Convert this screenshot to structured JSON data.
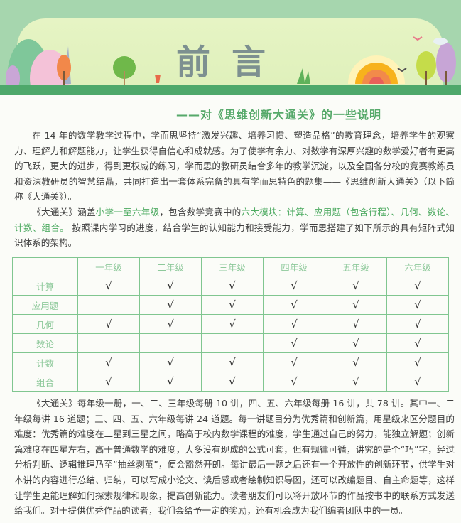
{
  "header": {
    "title": "前言",
    "subtitle": "——对《思维创新大通关》的一些说明"
  },
  "colors": {
    "accent": "#56a96a",
    "banner": "#a6d6ae",
    "table_border": "#80c690"
  },
  "para1": "在 14 年的数学教学过程中，学而思坚持“激发兴趣、培养习惯、塑造品格”的教育理念，培养学生的观察力、理解力和解题能力，让学生获得自信心和成就感。为了使学有余力、对数学有深厚兴趣的数学爱好者有更高的飞跃，更大的进步，得到更权威的练习，学而思的教研员结合多年的教学沉淀，以及全国各分校的竞赛教练员和资深教研员的智慧结晶，共同打造出一套体系完备的具有学而思特色的题集——《思维创新大通关》（以下简称《大通关》）。",
  "para2": {
    "a": "《大通关》涵盖",
    "b": "小学一至六年级",
    "c": "，包含数学竞赛中的",
    "d": "六大模块：计算、应用题（包含行程）、几何、数论、计数、组合。",
    "e": " 按照课内学习的进度，结合学生的认知能力和接受能力，学而思搭建了如下所示的具有矩阵式知识体系的架构。"
  },
  "table": {
    "headers": [
      "",
      "一年级",
      "二年级",
      "三年级",
      "四年级",
      "五年级",
      "六年级"
    ],
    "check": "√",
    "rows": [
      {
        "label": "计算",
        "cells": [
          true,
          true,
          true,
          true,
          true,
          true
        ]
      },
      {
        "label": "应用题",
        "cells": [
          false,
          true,
          true,
          true,
          true,
          true
        ]
      },
      {
        "label": "几何",
        "cells": [
          true,
          true,
          true,
          true,
          true,
          true
        ]
      },
      {
        "label": "数论",
        "cells": [
          false,
          false,
          false,
          true,
          true,
          true
        ]
      },
      {
        "label": "计数",
        "cells": [
          true,
          true,
          true,
          true,
          true,
          true
        ]
      },
      {
        "label": "组合",
        "cells": [
          true,
          true,
          true,
          true,
          true,
          true
        ]
      }
    ]
  },
  "para3": "《大通关》每年级一册，一、二、三年级每册 10 讲，四、五、六年级每册 16 讲，共 78 讲。其中一、二年级每讲 16 道题；三、四、五、六年级每讲 24 道题。每一讲题目分为优秀篇和创新篇，用星级来区分题目的难度：优秀篇的难度在二星到三星之间，略高于校内数学课程的难度，学生通过自己的努力，能独立解题；创新篇难度在四星左右，高于普通数学的难度，大多没有现成的公式可套，但有规律可循，讲究的是个“巧”字，经过分析判断、逻辑推理乃至“抽丝剥茧”，便会豁然开朗。每讲最后一题之后还有一个开放性的创新环节，供学生对本讲的内容进行总结、归纳，可以写成小论文、读后感或者绘制知识导图，还可以改编题目、自主命题等，这样让学生更能理解如何探索规律和现象，提高创新能力。读者朋友们可以将开放环节的作品按书中的联系方式发送给我们。对于提供优秀作品的读者，我们会给予一定的奖励，还有机会成为我们编者团队中的一员。"
}
